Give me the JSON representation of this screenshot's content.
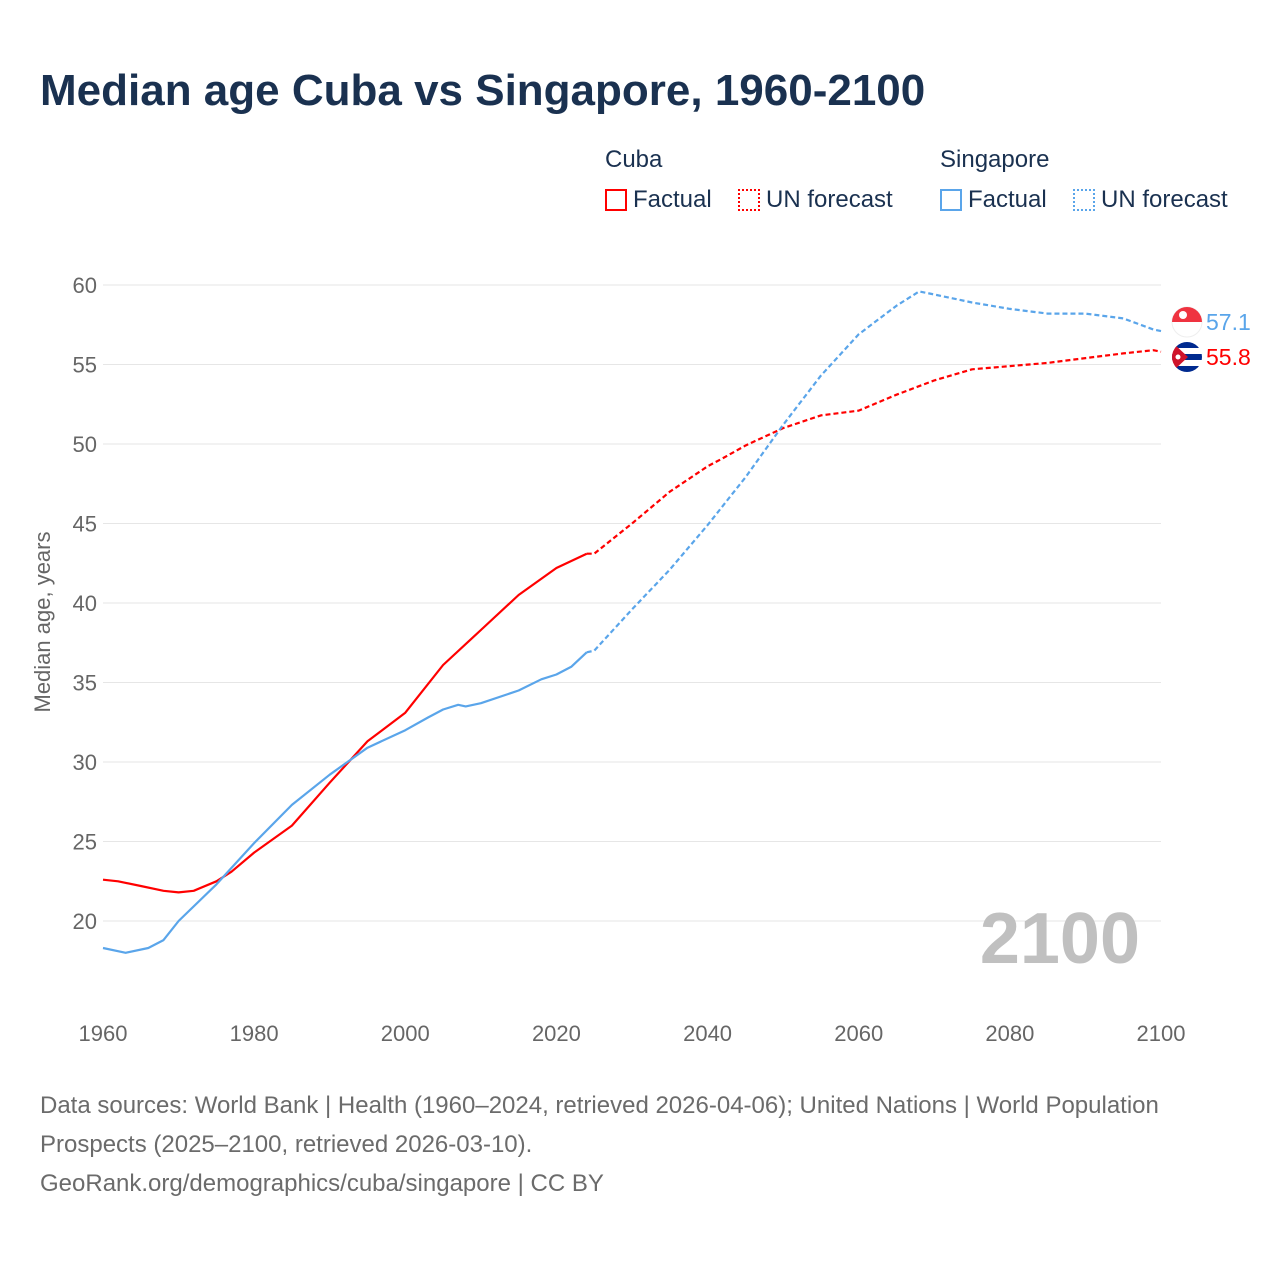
{
  "title": "Median age Cuba vs Singapore, 1960-2100",
  "legend": {
    "groups": [
      {
        "name": "Cuba",
        "color": "#ff0000",
        "items": [
          "Factual",
          "UN forecast"
        ]
      },
      {
        "name": "Singapore",
        "color": "#5aa5ea",
        "items": [
          "Factual",
          "UN forecast"
        ]
      }
    ]
  },
  "chart_data": {
    "type": "line",
    "title": "Median age Cuba vs Singapore, 1960-2100",
    "xlabel": "",
    "ylabel": "Median age, years",
    "xlim": [
      1960,
      2100
    ],
    "ylim": [
      15,
      60
    ],
    "xticks": [
      "1960",
      "1980",
      "2000",
      "2020",
      "2040",
      "2060",
      "2080",
      "2100"
    ],
    "yticks": [
      "20",
      "25",
      "30",
      "35",
      "40",
      "45",
      "50",
      "55",
      "60"
    ],
    "grid": true,
    "year_watermark": "2100",
    "series": [
      {
        "name": "Cuba",
        "segment": "Factual",
        "color": "#ff0000",
        "x": [
          1960,
          1962,
          1965,
          1968,
          1970,
          1972,
          1975,
          1977,
          1980,
          1985,
          1990,
          1995,
          2000,
          2005,
          2010,
          2015,
          2020,
          2024
        ],
        "y": [
          22.6,
          22.5,
          22.2,
          21.9,
          21.8,
          21.9,
          22.5,
          23.1,
          24.3,
          26.0,
          28.7,
          31.3,
          33.1,
          36.1,
          38.3,
          40.5,
          42.2,
          43.1
        ]
      },
      {
        "name": "Cuba",
        "segment": "UN forecast",
        "color": "#ff0000",
        "x": [
          2024,
          2025,
          2030,
          2035,
          2040,
          2042,
          2045,
          2050,
          2055,
          2060,
          2065,
          2070,
          2075,
          2080,
          2085,
          2090,
          2095,
          2099,
          2100
        ],
        "y": [
          43.1,
          43.1,
          45.0,
          47.0,
          48.6,
          49.1,
          49.9,
          51.0,
          51.8,
          52.1,
          53.1,
          54.0,
          54.7,
          54.9,
          55.1,
          55.4,
          55.7,
          55.9,
          55.8
        ]
      },
      {
        "name": "Singapore",
        "segment": "Factual",
        "color": "#5aa5ea",
        "x": [
          1960,
          1963,
          1966,
          1968,
          1970,
          1975,
          1980,
          1985,
          1990,
          1995,
          2000,
          2003,
          2005,
          2007,
          2008,
          2010,
          2015,
          2018,
          2020,
          2022,
          2024
        ],
        "y": [
          18.3,
          18.0,
          18.3,
          18.8,
          20.0,
          22.3,
          24.9,
          27.3,
          29.2,
          30.9,
          32.0,
          32.8,
          33.3,
          33.6,
          33.5,
          33.7,
          34.5,
          35.2,
          35.5,
          36.0,
          36.9
        ]
      },
      {
        "name": "Singapore",
        "segment": "UN forecast",
        "color": "#5aa5ea",
        "x": [
          2024,
          2025,
          2030,
          2035,
          2040,
          2045,
          2050,
          2055,
          2060,
          2065,
          2068,
          2070,
          2075,
          2080,
          2085,
          2090,
          2095,
          2099,
          2100
        ],
        "y": [
          36.9,
          37.0,
          39.6,
          42.1,
          44.9,
          47.9,
          51.2,
          54.3,
          56.9,
          58.7,
          59.6,
          59.4,
          58.9,
          58.5,
          58.2,
          58.2,
          57.9,
          57.2,
          57.1
        ]
      }
    ],
    "end_labels": [
      {
        "name": "Singapore",
        "value": "57.1",
        "color": "#5aa5ea"
      },
      {
        "name": "Cuba",
        "value": "55.8",
        "color": "#ff0000"
      }
    ]
  },
  "footer": {
    "sources": "Data sources: World Bank | Health (1960–2024, retrieved 2026-04-06); United Nations | World Population Prospects (2025–2100, retrieved 2026-03-10).",
    "credit": "GeoRank.org/demographics/cuba/singapore | CC BY"
  }
}
